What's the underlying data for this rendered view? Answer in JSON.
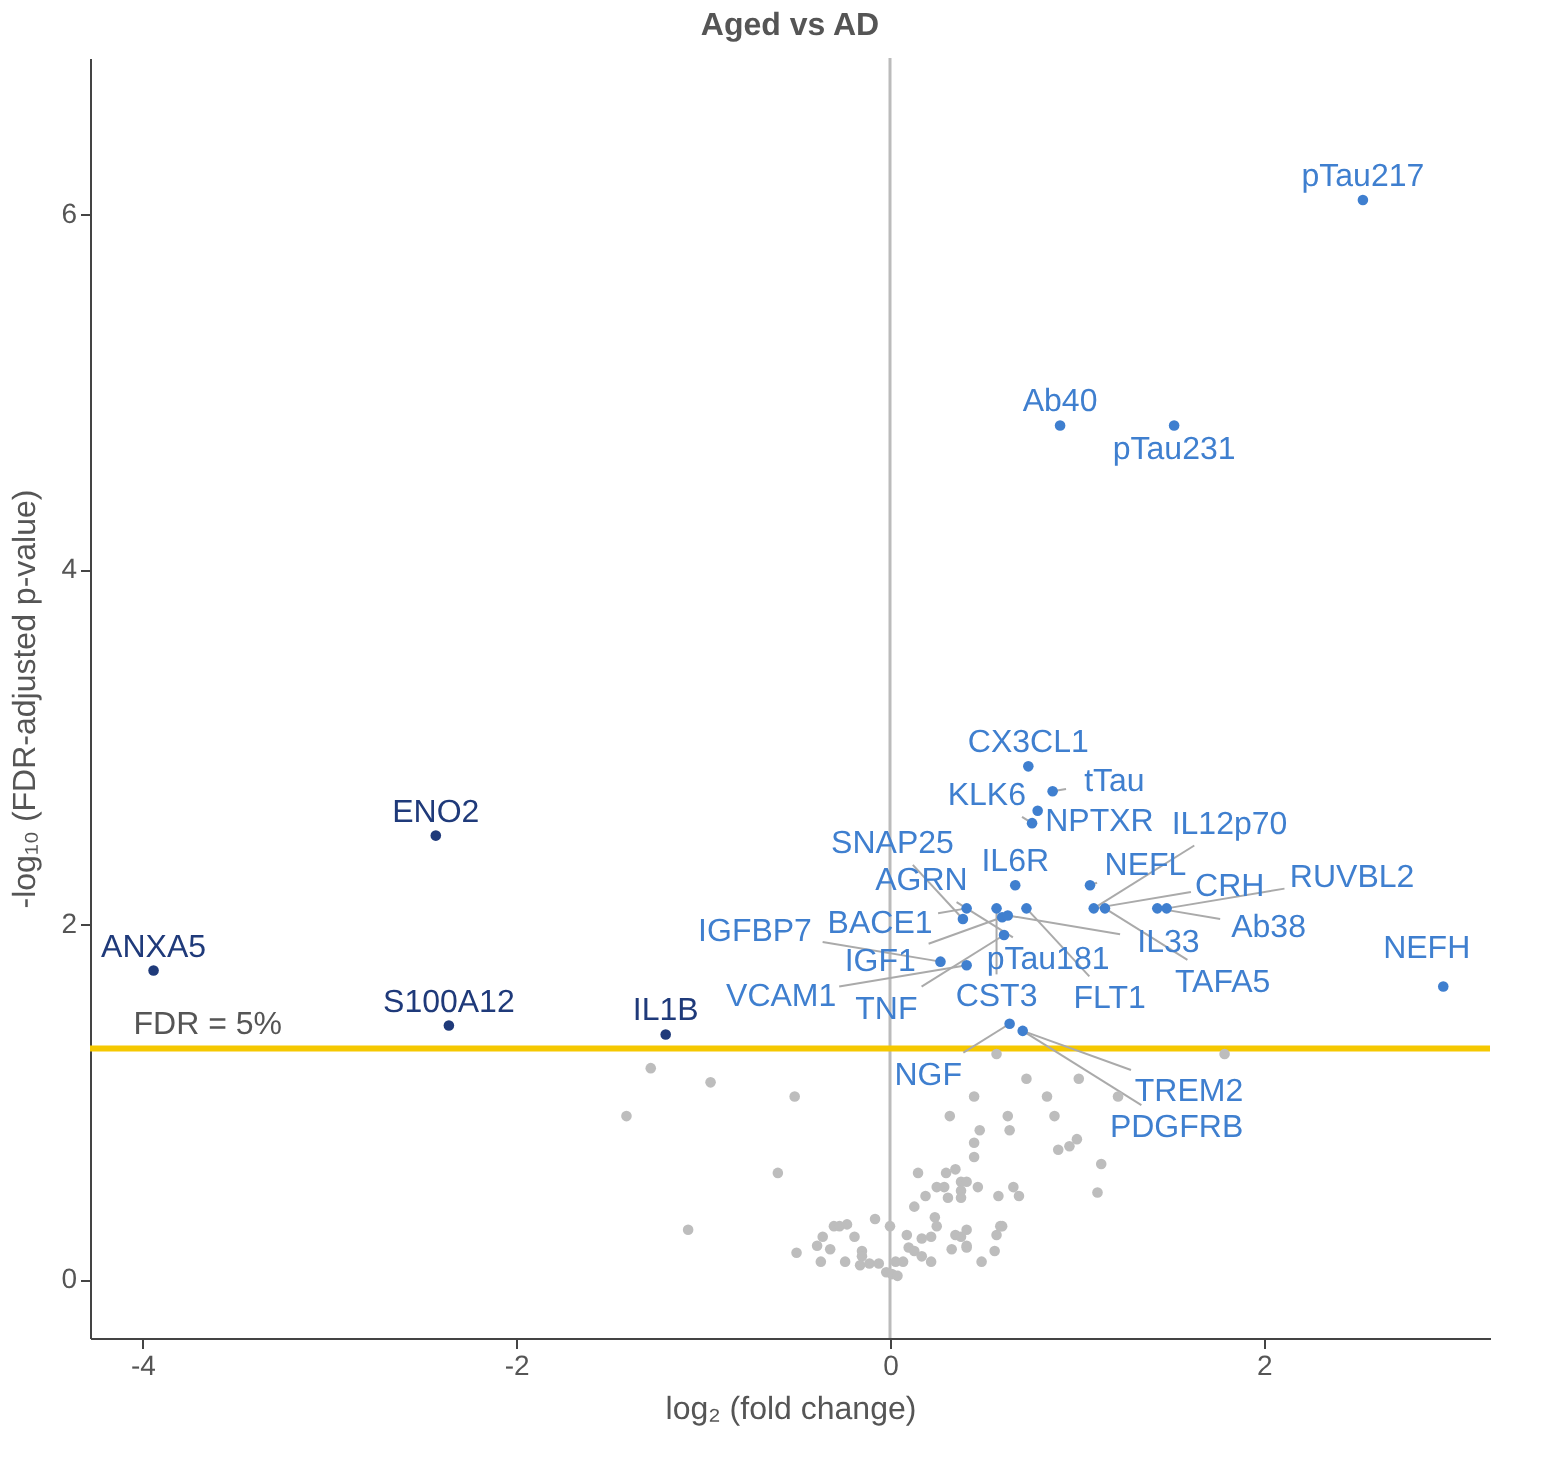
{
  "chart_data": {
    "type": "scatter",
    "title": "Aged vs AD",
    "xlabel": "log₂ (fold change)",
    "ylabel": "-log₁₀ (FDR-adjusted p-value)",
    "xlim": [
      -4.28,
      3.21
    ],
    "ylim": [
      -0.33,
      6.88
    ],
    "xticks": [
      -4,
      -2,
      0,
      2
    ],
    "yticks": [
      0,
      2,
      4,
      6
    ],
    "grid": false,
    "marker": "circle",
    "series": [
      {
        "color": "#3f7fcf",
        "x": [
          2.53,
          0.91,
          1.52,
          2.96,
          0.74,
          0.87,
          0.79,
          0.76,
          0.67,
          1.07,
          0.41,
          0.39,
          0.57,
          0.6,
          0.63,
          0.73,
          1.09,
          1.15,
          1.43,
          1.48,
          0.61,
          0.27,
          0.41,
          0.64,
          0.71
        ],
        "values": [
          6.08,
          4.81,
          4.81,
          1.65,
          2.89,
          2.75,
          2.64,
          2.57,
          2.22,
          2.22,
          2.09,
          2.03,
          2.09,
          2.04,
          2.05,
          2.09,
          2.09,
          2.09,
          2.09,
          2.09,
          1.94,
          1.79,
          1.77,
          1.44,
          1.4
        ]
      },
      {
        "color": "#1f3a7a",
        "x": [
          -2.43,
          -3.94,
          -2.36,
          -1.2
        ],
        "values": [
          2.5,
          1.74,
          1.43,
          1.38
        ]
      },
      {
        "color": "#bdbdbd",
        "x": [
          -1.28,
          -0.96,
          -0.51,
          -1.41,
          -0.6,
          -1.08,
          0.57,
          1.79,
          0.73,
          1.01,
          1.22,
          0.45,
          0.84,
          0.32,
          0.63,
          0.88,
          0.48,
          0.64,
          0.45,
          1.0,
          0.96,
          0.9,
          0.45,
          1.13,
          0.15,
          0.3,
          0.35,
          0.38,
          0.41,
          0.47,
          0.25,
          0.29,
          0.38,
          0.66,
          0.19,
          0.31,
          0.38,
          0.58,
          0.69,
          1.11,
          0.13,
          0.24,
          -0.08,
          0.0,
          0.25,
          0.59,
          0.6,
          -0.3,
          -0.27,
          -0.23,
          0.41,
          -0.36,
          -0.19,
          0.09,
          0.17,
          0.22,
          0.35,
          0.38,
          0.57,
          0.41,
          -0.39,
          -0.32,
          -0.5,
          0.1,
          0.13,
          0.33,
          0.41,
          0.56,
          -0.15,
          -0.15,
          0.17,
          -0.37,
          -0.24,
          -0.16,
          -0.11,
          -0.06,
          0.03,
          0.07,
          0.22,
          0.49,
          -0.02,
          0.01,
          0.04
        ],
        "values": [
          1.19,
          1.11,
          1.03,
          0.92,
          0.6,
          0.28,
          1.27,
          1.27,
          1.13,
          1.13,
          1.03,
          1.03,
          1.03,
          0.92,
          0.92,
          0.92,
          0.84,
          0.84,
          0.77,
          0.79,
          0.75,
          0.73,
          0.69,
          0.65,
          0.6,
          0.6,
          0.62,
          0.55,
          0.55,
          0.52,
          0.52,
          0.52,
          0.5,
          0.52,
          0.47,
          0.46,
          0.46,
          0.47,
          0.47,
          0.49,
          0.41,
          0.35,
          0.34,
          0.3,
          0.3,
          0.3,
          0.3,
          0.3,
          0.3,
          0.31,
          0.28,
          0.24,
          0.24,
          0.25,
          0.23,
          0.24,
          0.25,
          0.24,
          0.25,
          0.19,
          0.19,
          0.17,
          0.15,
          0.18,
          0.16,
          0.17,
          0.18,
          0.16,
          0.16,
          0.13,
          0.13,
          0.1,
          0.1,
          0.08,
          0.09,
          0.09,
          0.1,
          0.1,
          0.1,
          0.1,
          0.04,
          0.03,
          0.02
        ]
      }
    ],
    "ref_lines": [
      {
        "axis": "x",
        "value": 0,
        "color": "#bbbbbb"
      },
      {
        "axis": "y",
        "value": 1.301,
        "color": "#f5c800"
      }
    ],
    "annotations": [
      {
        "text": "FDR = 5%",
        "x": -3.65,
        "y": 1.301
      },
      {
        "text": "pTau217",
        "x": 2.53,
        "y": 6.08
      },
      {
        "text": "Ab40",
        "x": 0.91,
        "y": 4.81
      },
      {
        "text": "pTau231",
        "x": 1.52,
        "y": 4.81
      },
      {
        "text": "ENO2",
        "x": -2.43,
        "y": 2.5
      },
      {
        "text": "ANXA5",
        "x": -3.94,
        "y": 1.74
      },
      {
        "text": "S100A12",
        "x": -2.36,
        "y": 1.43
      },
      {
        "text": "IL1B",
        "x": -1.2,
        "y": 1.38
      },
      {
        "text": "NEFH",
        "x": 2.96,
        "y": 1.65
      },
      {
        "text": "CX3CL1",
        "x": 0.74,
        "y": 2.89
      },
      {
        "text": "tTau",
        "x": 0.87,
        "y": 2.75
      },
      {
        "text": "NPTXR",
        "x": 0.79,
        "y": 2.64
      },
      {
        "text": "KLK6",
        "x": 0.76,
        "y": 2.57
      },
      {
        "text": "IL6R",
        "x": 0.67,
        "y": 2.22
      },
      {
        "text": "NEFL",
        "x": 1.07,
        "y": 2.22
      },
      {
        "text": "AGRN",
        "x": 0.41,
        "y": 2.09
      },
      {
        "text": "BACE1",
        "x": 0.41,
        "y": 2.09
      },
      {
        "text": "pTau181",
        "x": 0.41,
        "y": 2.09
      },
      {
        "text": "SNAP25",
        "x": 0.39,
        "y": 2.03
      },
      {
        "text": "IGF1",
        "x": 0.6,
        "y": 2.04
      },
      {
        "text": "CST3",
        "x": 0.57,
        "y": 2.09
      },
      {
        "text": "IL33",
        "x": 0.63,
        "y": 2.05
      },
      {
        "text": "FLT1",
        "x": 0.73,
        "y": 2.09
      },
      {
        "text": "CRH",
        "x": 1.09,
        "y": 2.09
      },
      {
        "text": "IL12p70",
        "x": 1.09,
        "y": 2.09
      },
      {
        "text": "TAFA5",
        "x": 1.15,
        "y": 2.09
      },
      {
        "text": "Ab38",
        "x": 1.43,
        "y": 2.09
      },
      {
        "text": "RUVBL2",
        "x": 1.48,
        "y": 2.09
      },
      {
        "text": "TNF",
        "x": 0.61,
        "y": 1.94
      },
      {
        "text": "IGFBP7",
        "x": 0.27,
        "y": 1.79
      },
      {
        "text": "VCAM1",
        "x": 0.41,
        "y": 1.77
      },
      {
        "text": "NGF",
        "x": 0.64,
        "y": 1.44
      },
      {
        "text": "TREM2",
        "x": 0.71,
        "y": 1.4
      },
      {
        "text": "PDGFRB",
        "x": 0.71,
        "y": 1.4
      }
    ]
  }
}
